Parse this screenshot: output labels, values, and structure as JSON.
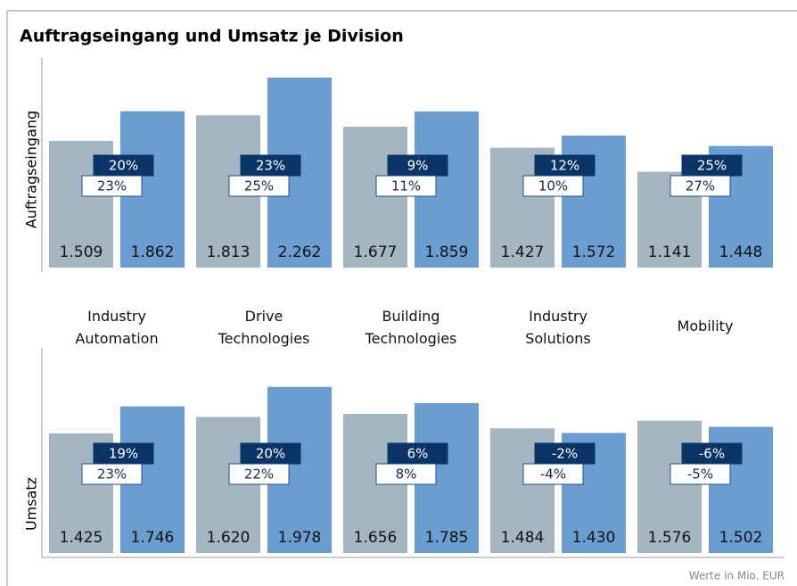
{
  "chart_data": {
    "type": "bar",
    "title": "Auftragseingang und Umsatz je Division",
    "note": "Werte in Mio. EUR",
    "categories": [
      "Industry\nAutomation",
      "Drive\nTechnologies",
      "Building\nTechnologies",
      "Industry\nSolutions",
      "Mobility"
    ],
    "panels": [
      {
        "ylabel": "Auftragseingang",
        "series": [
          {
            "color": "#a3b6c1",
            "values": [
              1509,
              1813,
              1677,
              1427,
              1141
            ],
            "value_labels": [
              "1.509",
              "1.813",
              "1.677",
              "1.427",
              "1.141"
            ]
          },
          {
            "color": "#6a9ed0",
            "values": [
              1862,
              2262,
              1859,
              1572,
              1448
            ],
            "value_labels": [
              "1.862",
              "2.262",
              "1.859",
              "1.572",
              "1.448"
            ]
          }
        ],
        "badges": [
          {
            "color": "#0b3466",
            "values": [
              20,
              23,
              9,
              12,
              25
            ],
            "value_labels": [
              "20%",
              "23%",
              "9%",
              "12%",
              "25%"
            ]
          },
          {
            "color": "#ffffff",
            "values": [
              23,
              25,
              11,
              10,
              27
            ],
            "value_labels": [
              "23%",
              "25%",
              "11%",
              "10%",
              "27%"
            ]
          }
        ]
      },
      {
        "ylabel": "Umsatz",
        "series": [
          {
            "color": "#a3b6c1",
            "values": [
              1425,
              1620,
              1656,
              1484,
              1576
            ],
            "value_labels": [
              "1.425",
              "1.620",
              "1.656",
              "1.484",
              "1.576"
            ]
          },
          {
            "color": "#6a9ed0",
            "values": [
              1746,
              1978,
              1785,
              1430,
              1502
            ],
            "value_labels": [
              "1.746",
              "1.978",
              "1.785",
              "1.430",
              "1.502"
            ]
          }
        ],
        "badges": [
          {
            "color": "#0b3466",
            "values": [
              19,
              20,
              6,
              -2,
              -6
            ],
            "value_labels": [
              "19%",
              "20%",
              "6%",
              "-2%",
              "-6%"
            ]
          },
          {
            "color": "#ffffff",
            "values": [
              23,
              22,
              8,
              -4,
              -5
            ],
            "value_labels": [
              "23%",
              "22%",
              "8%",
              "-4%",
              "-5%"
            ]
          }
        ]
      }
    ]
  }
}
